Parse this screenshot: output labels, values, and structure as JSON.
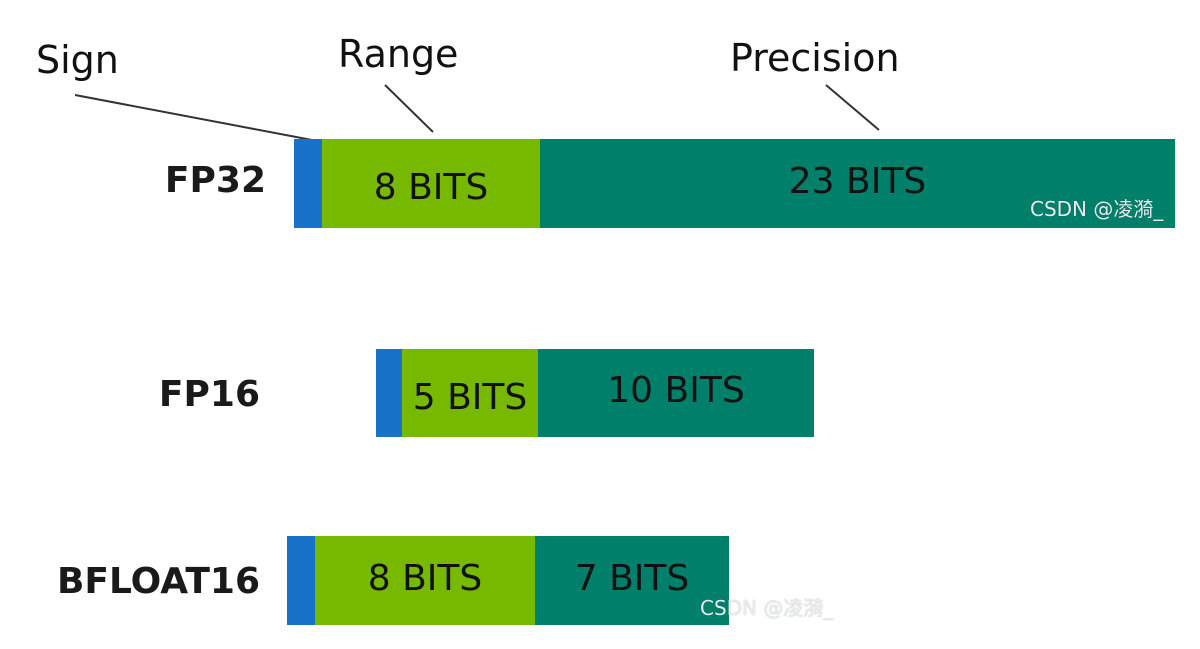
{
  "colors": {
    "sign": "#1873c8",
    "range": "#76b900",
    "precision": "#00806a",
    "text": "#111111",
    "line": "#333333"
  },
  "callouts": {
    "sign": "Sign",
    "range": "Range",
    "precision": "Precision"
  },
  "rows": [
    {
      "label": "FP32",
      "range_text": "8 BITS",
      "precision_text": "23 BITS"
    },
    {
      "label": "FP16",
      "range_text": "5 BITS",
      "precision_text": "10 BITS"
    },
    {
      "label": "BFLOAT16",
      "range_text": "8 BITS",
      "precision_text": "7 BITS"
    }
  ],
  "watermarks": [
    "CSDN @凌漪_",
    "CSDN @凌漪_"
  ]
}
